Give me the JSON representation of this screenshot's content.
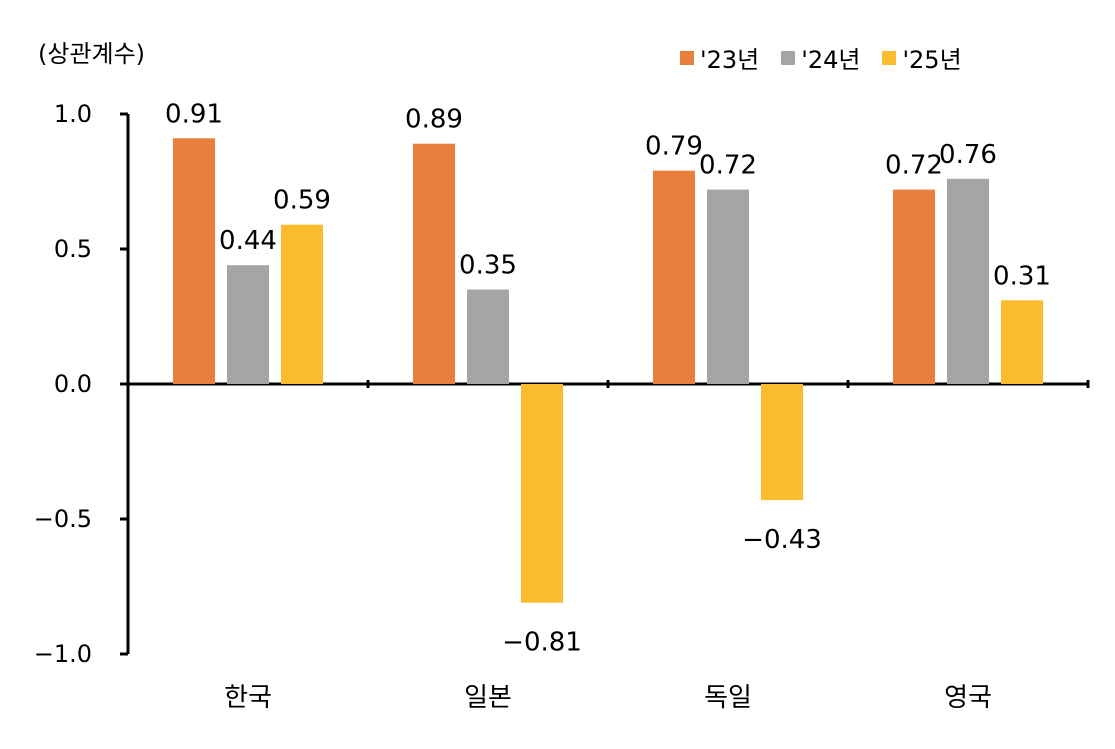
{
  "chart_data": {
    "type": "bar",
    "ylabel": "(상관계수)",
    "categories": [
      "한국",
      "일본",
      "독일",
      "영국"
    ],
    "series": [
      {
        "name": "'23년",
        "color": "#E97F3C",
        "values": [
          0.91,
          0.89,
          0.79,
          0.72
        ]
      },
      {
        "name": "'24년",
        "color": "#A5A5A5",
        "values": [
          0.44,
          0.35,
          0.72,
          0.76
        ]
      },
      {
        "name": "'25년",
        "color": "#FBBD2E",
        "values": [
          0.59,
          -0.81,
          -0.43,
          0.31
        ]
      }
    ],
    "data_labels": [
      [
        "0.91",
        "0.89",
        "0.79",
        "0.72"
      ],
      [
        "0.44",
        "0.35",
        "0.72",
        "0.76"
      ],
      [
        "0.59",
        "−0.81",
        "−0.43",
        "0.31"
      ]
    ],
    "yticks": [
      "1.0",
      "0.5",
      "0.0",
      "−0.5",
      "−1.0"
    ],
    "ylim": [
      -1.0,
      1.0
    ],
    "grid": false,
    "legend_position": "top-right"
  }
}
